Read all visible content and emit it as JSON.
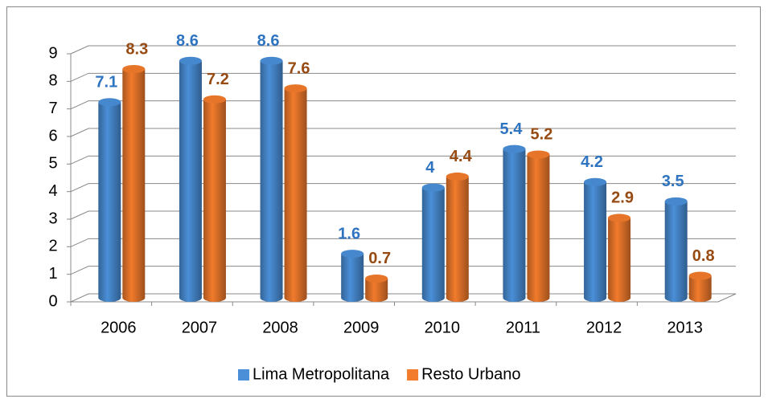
{
  "chart_data": {
    "type": "bar",
    "categories": [
      "2006",
      "2007",
      "2008",
      "2009",
      "2010",
      "2011",
      "2012",
      "2013"
    ],
    "series": [
      {
        "name": "Lima Metropolitana",
        "color": "#4a8fd8",
        "label_color": "#2e74c0",
        "values": [
          7.1,
          8.6,
          8.6,
          1.6,
          4,
          5.4,
          4.2,
          3.5
        ]
      },
      {
        "name": "Resto Urbano",
        "color": "#f27b2c",
        "label_color": "#974a12",
        "values": [
          8.3,
          7.2,
          7.6,
          0.7,
          4.4,
          5.2,
          2.9,
          0.8
        ]
      }
    ],
    "ylim": [
      0,
      9
    ],
    "yticks": [
      0,
      1,
      2,
      3,
      4,
      5,
      6,
      7,
      8,
      9
    ],
    "grid": true,
    "legend": "bottom"
  }
}
